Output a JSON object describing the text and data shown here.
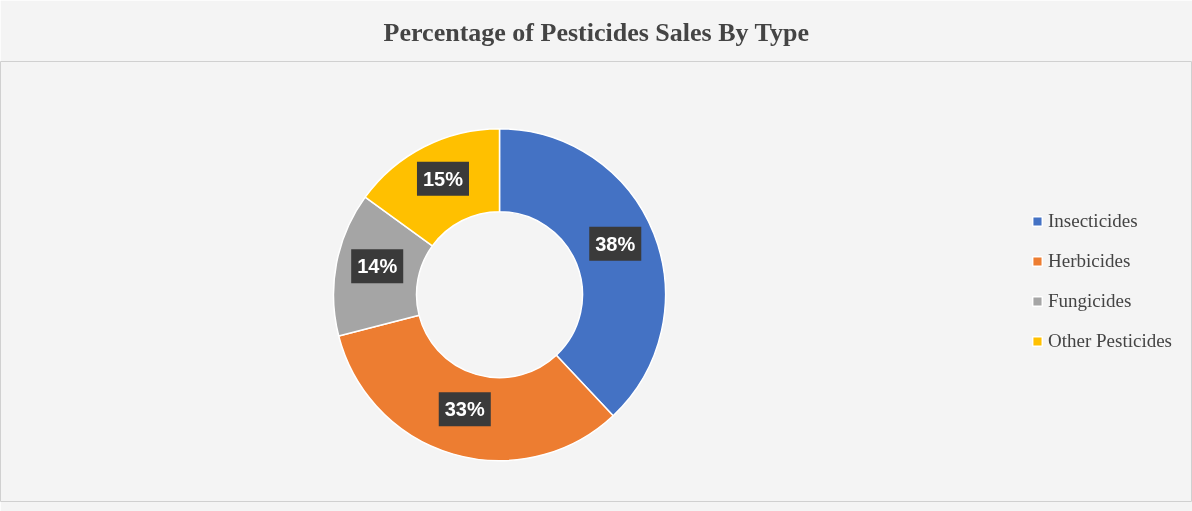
{
  "chart_data": {
    "type": "donut",
    "title": "Percentage of Pesticides Sales By Type",
    "categories": [
      "Insecticides",
      "Herbicides",
      "Fungicides",
      "Other Pesticides"
    ],
    "values": [
      38,
      33,
      14,
      15
    ],
    "colors": [
      "#4472c4",
      "#ed7d31",
      "#a5a5a5",
      "#ffc000"
    ],
    "value_labels": [
      "38%",
      "33%",
      "14%",
      "15%"
    ],
    "legend": "right"
  }
}
